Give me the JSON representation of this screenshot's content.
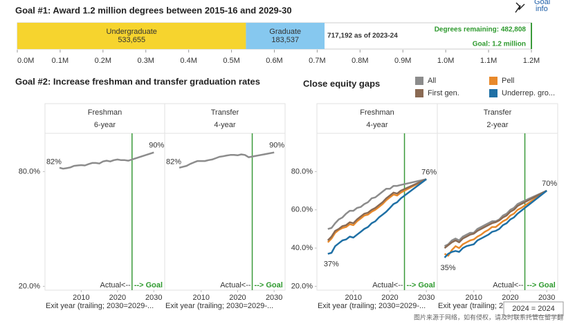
{
  "chart_data": [
    {
      "type": "bar",
      "title": "Goal #1: Award 1.2 million degrees between 2015-16 and 2029-30",
      "goal_info": [
        "Goal",
        "info"
      ],
      "series": [
        {
          "name": "Undergraduate",
          "color": "#f6d42e",
          "values": [
            533655
          ],
          "value_labels": [
            "533,655"
          ]
        },
        {
          "name": "Graduate",
          "color": "#86c8ef",
          "values": [
            183537
          ],
          "value_labels": [
            "183,537"
          ]
        }
      ],
      "total_label": "717,192 as of 2023-24",
      "remaining_label": "Degrees remaining: 482,808",
      "goal": {
        "value": 1200000,
        "label": "Goal: 1.2 million"
      },
      "xlim": [
        0,
        1200000
      ],
      "xticks": [
        {
          "value": 0,
          "label": "0.0M"
        },
        {
          "value": 100000,
          "label": "0.1M"
        },
        {
          "value": 200000,
          "label": "0.2M"
        },
        {
          "value": 300000,
          "label": "0.3M"
        },
        {
          "value": 400000,
          "label": "0.4M"
        },
        {
          "value": 500000,
          "label": "0.5M"
        },
        {
          "value": 600000,
          "label": "0.6M"
        },
        {
          "value": 700000,
          "label": "0.7M"
        },
        {
          "value": 800000,
          "label": "0.8M"
        },
        {
          "value": 900000,
          "label": "0.9M"
        },
        {
          "value": 1000000,
          "label": "1.0M"
        },
        {
          "value": 1100000,
          "label": "1.1M"
        },
        {
          "value": 1200000,
          "label": "1.2M"
        }
      ]
    },
    {
      "type": "line",
      "title": "Goal #2: Increase freshman and transfer graduation rates",
      "series": [
        {
          "color": "#8c8c8c"
        }
      ],
      "xlim": [
        2000,
        2033
      ],
      "xticks": [
        2010,
        2020,
        2030
      ],
      "ylim": [
        18,
        100
      ],
      "yticks": [
        {
          "value": 20,
          "label": "20.0%"
        },
        {
          "value": 80,
          "label": "80.0%"
        }
      ],
      "divider": 2024,
      "actual_label": "Actual<--",
      "goal_label": "--> Goal",
      "x_title": "Exit year (trailing; 2030=2029-...",
      "panels": [
        {
          "title": "Freshman",
          "subtitle": "6-year",
          "x": [
            2004,
            2005,
            2006,
            2007,
            2008,
            2009,
            2010,
            2011,
            2012,
            2013,
            2014,
            2015,
            2016,
            2017,
            2018,
            2019,
            2020,
            2021,
            2022,
            2023,
            2030
          ],
          "series": [
            {
              "values": [
                82,
                81.5,
                81.8,
                82.2,
                83,
                83.2,
                83.4,
                83.2,
                83.9,
                84.5,
                84.5,
                84.2,
                85.3,
                85.7,
                85.3,
                86,
                86.3,
                86,
                86,
                85.7,
                90
              ],
              "value_labels": [
                "82%",
                null,
                null,
                null,
                null,
                null,
                null,
                null,
                null,
                null,
                null,
                null,
                null,
                null,
                null,
                null,
                null,
                null,
                null,
                null,
                "90%"
              ]
            }
          ]
        },
        {
          "title": "Transfer",
          "subtitle": "4-year",
          "x": [
            2004,
            2005,
            2006,
            2007,
            2008,
            2009,
            2010,
            2011,
            2012,
            2013,
            2014,
            2015,
            2016,
            2017,
            2018,
            2019,
            2020,
            2021,
            2022,
            2023,
            2030
          ],
          "series": [
            {
              "values": [
                82,
                82.5,
                83,
                84,
                84.8,
                85.5,
                85.5,
                85.5,
                86,
                86.3,
                87,
                87.7,
                88,
                88.4,
                88.7,
                88.7,
                88.5,
                89,
                88.7,
                87.5,
                90
              ],
              "value_labels": [
                "82%",
                null,
                null,
                null,
                null,
                null,
                null,
                null,
                null,
                null,
                null,
                null,
                null,
                null,
                null,
                null,
                null,
                null,
                null,
                null,
                "90%"
              ]
            }
          ]
        }
      ]
    },
    {
      "type": "line",
      "title": "Close equity gaps",
      "legend": "top-right",
      "series": [
        {
          "name": "All",
          "color": "#8c8c8c"
        },
        {
          "name": "Pell",
          "color": "#e8892b"
        },
        {
          "name": "First gen.",
          "color": "#8a6a53"
        },
        {
          "name": "Underrep. gro...",
          "color": "#1f70a5"
        }
      ],
      "xlim": [
        2000,
        2033
      ],
      "xticks": [
        2010,
        2020,
        2030
      ],
      "ylim": [
        18,
        100
      ],
      "yticks": [
        {
          "value": 20,
          "label": "20.0%"
        },
        {
          "value": 40,
          "label": "40.0%"
        },
        {
          "value": 60,
          "label": "60.0%"
        },
        {
          "value": 80,
          "label": "80.0%"
        }
      ],
      "divider": 2024,
      "actual_label": "Actual<--",
      "goal_label": "--> Goal",
      "x_title": "Exit year (trailing; 2030=2029-...",
      "tooltip": "2024 = 2024",
      "watermark": "图片来源于网络，如有侵权，请及时联系托管在留学翻",
      "panels": [
        {
          "title": "Freshman",
          "subtitle": "4-year",
          "x": [
            2003,
            2004,
            2005,
            2006,
            2007,
            2008,
            2009,
            2010,
            2011,
            2012,
            2013,
            2014,
            2015,
            2016,
            2017,
            2018,
            2019,
            2020,
            2021,
            2022,
            2023,
            2030
          ],
          "series": [
            {
              "values": [
                50,
                50.5,
                53,
                55,
                56,
                58,
                59.5,
                59.5,
                61,
                61.5,
                63,
                64,
                66,
                66.5,
                68,
                69.5,
                71,
                71,
                72.5,
                72.5,
                73,
                76
              ],
              "value_labels": [
                null,
                null,
                null,
                null,
                null,
                null,
                null,
                null,
                null,
                null,
                null,
                null,
                null,
                null,
                null,
                null,
                null,
                null,
                null,
                null,
                null,
                "76%"
              ]
            },
            {
              "values": [
                43,
                45,
                48,
                49.5,
                50.5,
                51,
                52.5,
                52,
                54,
                55.5,
                57,
                57.5,
                59,
                60,
                61.5,
                63,
                65,
                66.5,
                68,
                67.5,
                69,
                76
              ]
            },
            {
              "values": [
                44,
                46,
                49,
                50,
                51.5,
                52,
                53.5,
                53,
                55,
                56.5,
                58,
                58.5,
                60,
                61,
                62.5,
                64,
                66,
                67.5,
                69,
                68.5,
                70,
                76
              ]
            },
            {
              "values": [
                37,
                37.5,
                41,
                42.5,
                44,
                44.5,
                46,
                45.5,
                47,
                48.5,
                50,
                51,
                53,
                54,
                56,
                57.5,
                59,
                61,
                63,
                64,
                66,
                76
              ],
              "value_labels": [
                "37%",
                null,
                null,
                null,
                null,
                null,
                null,
                null,
                null,
                null,
                null,
                null,
                null,
                null,
                null,
                null,
                null,
                null,
                null,
                null,
                null,
                null
              ]
            }
          ]
        },
        {
          "title": "Transfer",
          "subtitle": "2-year",
          "x": [
            2002,
            2003,
            2004,
            2005,
            2006,
            2007,
            2008,
            2009,
            2010,
            2011,
            2012,
            2013,
            2014,
            2015,
            2016,
            2017,
            2018,
            2019,
            2020,
            2021,
            2022,
            2023,
            2030
          ],
          "series": [
            {
              "values": [
                41,
                42,
                44,
                45,
                44,
                46,
                47,
                48,
                48,
                50,
                51,
                52,
                53,
                54,
                54,
                55,
                57,
                58,
                60,
                61,
                63,
                64,
                70
              ],
              "value_labels": [
                null,
                null,
                null,
                null,
                null,
                null,
                null,
                null,
                null,
                null,
                null,
                null,
                null,
                null,
                null,
                null,
                null,
                null,
                null,
                null,
                null,
                null,
                "70%"
              ]
            },
            {
              "values": [
                37,
                36,
                39,
                41,
                40,
                42,
                43,
                44,
                44.5,
                46,
                47,
                48.5,
                49.5,
                51,
                51,
                52.5,
                54,
                55,
                57,
                58,
                60,
                61,
                70
              ]
            },
            {
              "values": [
                40,
                41.5,
                43,
                44,
                43,
                45,
                46,
                47,
                47.5,
                49,
                50,
                51,
                52,
                53,
                53.5,
                54.5,
                56,
                57,
                59,
                60,
                62,
                63,
                70
              ]
            },
            {
              "values": [
                35,
                37,
                38,
                38.5,
                38,
                40,
                41,
                41.5,
                42,
                44,
                45,
                46,
                47,
                48.5,
                49,
                50,
                52,
                53,
                55,
                56,
                58,
                59.5,
                70
              ],
              "value_labels": [
                "35%",
                null,
                null,
                null,
                null,
                null,
                null,
                null,
                null,
                null,
                null,
                null,
                null,
                null,
                null,
                null,
                null,
                null,
                null,
                null,
                null,
                null,
                null
              ]
            }
          ]
        }
      ]
    }
  ]
}
